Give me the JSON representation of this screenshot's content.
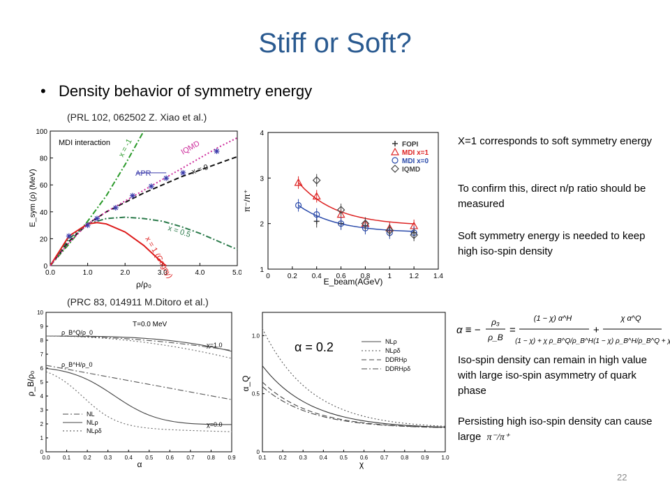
{
  "slide": {
    "title": "Stiff or Soft?",
    "bullet": "Density behavior of symmetry energy",
    "cite_top": "(PRL 102, 062502 Z. Xiao et al.)",
    "cite_bottom": "(PRC 83, 014911 M.Ditoro et al.)",
    "page_number": "22"
  },
  "side_notes": {
    "note1": "X=1 corresponds to soft symmetry energy",
    "note2": "To confirm this, direct n/p ratio should be measured",
    "note3": "Soft symmetry energy is needed to keep high iso-spin density",
    "note4": "Iso-spin density can remain in high value with large iso-spin asymmetry of quark phase",
    "note5": "Persisting high iso-spin density can cause large",
    "note5_formula": "π⁻/π⁺"
  },
  "equation": {
    "lhs": "α ≡ −",
    "frac1_num": "ρ₃",
    "frac1_den": "ρ_B",
    "frac2_num": "(1 − χ) α^H",
    "frac2_den": "(1 − χ) + χ ρ_B^Q/ρ_B^H",
    "plus": "+",
    "frac3_num": "χ α^Q",
    "frac3_den": "(1 − χ) ρ_B^H/ρ_B^Q + χ"
  },
  "chart_data": [
    {
      "type": "line",
      "panel": "top-left",
      "annotation": "MDI interaction",
      "xlabel": "ρ/ρ₀",
      "ylabel": "E_sym (ρ) (MeV)",
      "xlim": [
        0,
        5
      ],
      "ylim": [
        0,
        100
      ],
      "xticks": [
        "0.0",
        "1.0",
        "2.0",
        "3.0",
        "4.0",
        "5.0"
      ],
      "yticks": [
        "0",
        "20",
        "40",
        "60",
        "80",
        "100"
      ],
      "series": [
        {
          "name": "x = -1",
          "color": "#2a9a2a",
          "style": "dashdot",
          "x": [
            0,
            0.5,
            1,
            1.5,
            2,
            2.5
          ],
          "y": [
            0,
            16,
            33,
            52,
            75,
            100
          ]
        },
        {
          "name": "x = 0",
          "color": "#111111",
          "style": "dashed",
          "x": [
            0,
            0.5,
            1,
            1.5,
            2,
            2.5,
            3,
            3.5,
            4,
            4.5,
            5
          ],
          "y": [
            0,
            18,
            31,
            40,
            47,
            54,
            60,
            66,
            71,
            76,
            81
          ]
        },
        {
          "name": "x = 0.5",
          "color": "#2a7a4a",
          "style": "dashdot",
          "x": [
            0,
            0.5,
            1,
            1.5,
            2,
            2.5,
            3,
            3.5,
            4,
            4.5,
            5
          ],
          "y": [
            0,
            20,
            31,
            35,
            36,
            35,
            33,
            29,
            24,
            18,
            12
          ]
        },
        {
          "name": "x = 1 (Gogny)",
          "color": "#dd1a1a",
          "style": "solid",
          "x": [
            0,
            0.5,
            1,
            1.25,
            1.5,
            2,
            2.5,
            3,
            3.1
          ],
          "y": [
            0,
            22,
            31,
            32,
            31,
            25,
            15,
            2,
            0
          ]
        },
        {
          "name": "IQMD",
          "color": "#cc2a9a",
          "style": "dotted",
          "x": [
            0,
            0.5,
            1,
            1.5,
            2,
            2.5,
            3,
            3.5,
            4,
            4.5,
            5
          ],
          "y": [
            0,
            17,
            31,
            40,
            48,
            56,
            64,
            72,
            80,
            88,
            95
          ]
        },
        {
          "name": "APR",
          "color": "#3a3aaa",
          "style": "markers",
          "x": [
            0.5,
            1,
            1.25,
            1.75,
            2.2,
            2.7,
            3.1,
            3.55,
            4.45
          ],
          "y": [
            22,
            30,
            35,
            43,
            52,
            59,
            65,
            69,
            85
          ]
        }
      ]
    },
    {
      "type": "scatter",
      "panel": "top-right",
      "xlabel": "E_beam(AGeV)",
      "ylabel": "π⁻/π⁺",
      "xlim": [
        0,
        1.4
      ],
      "ylim": [
        1,
        4
      ],
      "xticks": [
        "0",
        "0.2",
        "0.4",
        "0.6",
        "0.8",
        "1",
        "1.2",
        "1.4"
      ],
      "yticks": [
        "1",
        "2",
        "3",
        "4"
      ],
      "legend": [
        "FOPI",
        "MDI x=1",
        "MDI x=0",
        "IQMD"
      ],
      "series": [
        {
          "name": "FOPI",
          "color": "#333333",
          "x": [
            0.4,
            0.6,
            0.8,
            1.0,
            1.2
          ],
          "y": [
            2.05,
            2.0,
            1.95,
            1.85,
            1.8
          ]
        },
        {
          "name": "MDI x=1",
          "color": "#dd2222",
          "x": [
            0.25,
            0.4,
            0.6,
            0.8,
            1.0,
            1.2
          ],
          "y": [
            2.9,
            2.6,
            2.2,
            2.0,
            1.9,
            1.95
          ]
        },
        {
          "name": "MDI x=0",
          "color": "#2a4aaa",
          "x": [
            0.25,
            0.4,
            0.6,
            0.8,
            1.0,
            1.2
          ],
          "y": [
            2.4,
            2.2,
            2.0,
            1.9,
            1.8,
            1.8
          ]
        },
        {
          "name": "IQMD",
          "color": "#444444",
          "x": [
            0.4,
            0.6,
            0.8,
            1.0,
            1.2
          ],
          "y": [
            2.95,
            2.3,
            2.0,
            1.85,
            1.75
          ]
        }
      ]
    },
    {
      "type": "line",
      "panel": "bottom-left",
      "annotation": "T=0.0 MeV",
      "xlabel": "α",
      "ylabel": "ρ_B/ρ₀",
      "xlim": [
        0,
        0.9
      ],
      "ylim": [
        0,
        10
      ],
      "xticks": [
        "0.0",
        "0.1",
        "0.2",
        "0.3",
        "0.4",
        "0.5",
        "0.6",
        "0.7",
        "0.8",
        "0.9"
      ],
      "yticks": [
        "0",
        "1",
        "2",
        "3",
        "4",
        "5",
        "6",
        "7",
        "8",
        "9",
        "10"
      ],
      "curve_labels": [
        "ρ_B^Q/ρ_0",
        "ρ_B^H/ρ_0",
        "χ=1.0",
        "χ=0.0"
      ],
      "legend": [
        "NL",
        "NLρ",
        "NLρδ"
      ]
    },
    {
      "type": "line",
      "panel": "bottom-right",
      "annotation": "α = 0.2",
      "xlabel": "χ",
      "ylabel": "α_Q",
      "xlim": [
        0.1,
        1.0
      ],
      "ylim": [
        0,
        1.2
      ],
      "xticks": [
        "0.1",
        "0.2",
        "0.3",
        "0.4",
        "0.5",
        "0.6",
        "0.7",
        "0.8",
        "0.9",
        "1.0"
      ],
      "yticks": [
        "0",
        "0.5",
        "1.0"
      ],
      "legend": [
        "NLρ",
        "NLρδ",
        "DDRHρ",
        "DDRHρδ"
      ]
    }
  ]
}
